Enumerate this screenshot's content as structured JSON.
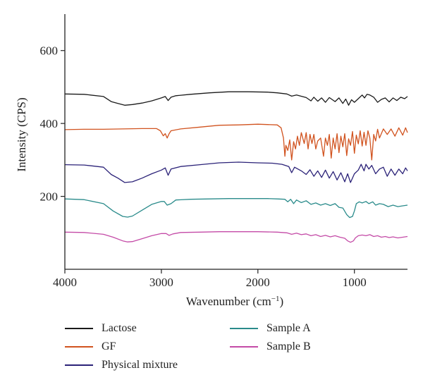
{
  "chart_data": {
    "type": "line",
    "xlabel": "Wavenumber (cm",
    "xlabel_sup": "−1",
    "xlabel_end": ")",
    "ylabel": "Intensity (CPS)",
    "xlim": [
      4000,
      450
    ],
    "ylim": [
      0,
      700
    ],
    "x_reversed": true,
    "xticks": [
      4000,
      3000,
      2000,
      1000
    ],
    "yticks": [
      200,
      400,
      600
    ],
    "grid": false,
    "legend_position": "bottom",
    "series": [
      {
        "name": "Lactose",
        "color": "#1a1a1a",
        "points": [
          [
            4000,
            481
          ],
          [
            3800,
            480
          ],
          [
            3600,
            474
          ],
          [
            3520,
            460
          ],
          [
            3450,
            455
          ],
          [
            3380,
            450
          ],
          [
            3300,
            452
          ],
          [
            3200,
            456
          ],
          [
            3100,
            462
          ],
          [
            3000,
            470
          ],
          [
            2960,
            474
          ],
          [
            2930,
            463
          ],
          [
            2900,
            472
          ],
          [
            2850,
            476
          ],
          [
            2700,
            480
          ],
          [
            2500,
            484
          ],
          [
            2300,
            487
          ],
          [
            2100,
            487
          ],
          [
            1900,
            486
          ],
          [
            1800,
            484
          ],
          [
            1700,
            481
          ],
          [
            1650,
            475
          ],
          [
            1600,
            478
          ],
          [
            1500,
            471
          ],
          [
            1450,
            462
          ],
          [
            1420,
            472
          ],
          [
            1380,
            461
          ],
          [
            1340,
            470
          ],
          [
            1300,
            458
          ],
          [
            1260,
            471
          ],
          [
            1200,
            460
          ],
          [
            1160,
            470
          ],
          [
            1120,
            455
          ],
          [
            1090,
            467
          ],
          [
            1060,
            450
          ],
          [
            1030,
            465
          ],
          [
            1000,
            458
          ],
          [
            960,
            468
          ],
          [
            920,
            478
          ],
          [
            895,
            470
          ],
          [
            870,
            480
          ],
          [
            840,
            478
          ],
          [
            800,
            472
          ],
          [
            760,
            458
          ],
          [
            720,
            466
          ],
          [
            680,
            470
          ],
          [
            640,
            459
          ],
          [
            600,
            470
          ],
          [
            560,
            463
          ],
          [
            520,
            472
          ],
          [
            480,
            468
          ],
          [
            450,
            474
          ]
        ]
      },
      {
        "name": "GF",
        "color": "#d1531f",
        "points": [
          [
            4000,
            383
          ],
          [
            3800,
            384
          ],
          [
            3600,
            384
          ],
          [
            3400,
            385
          ],
          [
            3200,
            386
          ],
          [
            3050,
            386
          ],
          [
            3010,
            380
          ],
          [
            2980,
            366
          ],
          [
            2960,
            372
          ],
          [
            2940,
            360
          ],
          [
            2920,
            372
          ],
          [
            2900,
            380
          ],
          [
            2800,
            385
          ],
          [
            2600,
            390
          ],
          [
            2400,
            395
          ],
          [
            2200,
            396
          ],
          [
            2000,
            398
          ],
          [
            1900,
            397
          ],
          [
            1800,
            396
          ],
          [
            1760,
            388
          ],
          [
            1735,
            360
          ],
          [
            1720,
            310
          ],
          [
            1710,
            340
          ],
          [
            1690,
            326
          ],
          [
            1670,
            355
          ],
          [
            1650,
            300
          ],
          [
            1630,
            350
          ],
          [
            1610,
            330
          ],
          [
            1590,
            365
          ],
          [
            1570,
            340
          ],
          [
            1550,
            375
          ],
          [
            1520,
            345
          ],
          [
            1500,
            375
          ],
          [
            1480,
            330
          ],
          [
            1460,
            370
          ],
          [
            1440,
            345
          ],
          [
            1420,
            370
          ],
          [
            1400,
            330
          ],
          [
            1380,
            352
          ],
          [
            1350,
            360
          ],
          [
            1320,
            310
          ],
          [
            1300,
            360
          ],
          [
            1280,
            340
          ],
          [
            1260,
            370
          ],
          [
            1240,
            305
          ],
          [
            1220,
            360
          ],
          [
            1200,
            330
          ],
          [
            1180,
            372
          ],
          [
            1160,
            320
          ],
          [
            1140,
            365
          ],
          [
            1120,
            336
          ],
          [
            1100,
            372
          ],
          [
            1080,
            312
          ],
          [
            1060,
            358
          ],
          [
            1040,
            340
          ],
          [
            1020,
            378
          ],
          [
            1000,
            318
          ],
          [
            980,
            368
          ],
          [
            960,
            344
          ],
          [
            940,
            380
          ],
          [
            920,
            338
          ],
          [
            900,
            376
          ],
          [
            880,
            340
          ],
          [
            860,
            380
          ],
          [
            840,
            360
          ],
          [
            820,
            300
          ],
          [
            800,
            370
          ],
          [
            780,
            352
          ],
          [
            760,
            384
          ],
          [
            740,
            360
          ],
          [
            700,
            385
          ],
          [
            660,
            370
          ],
          [
            620,
            385
          ],
          [
            580,
            365
          ],
          [
            540,
            388
          ],
          [
            500,
            368
          ],
          [
            470,
            388
          ],
          [
            450,
            375
          ]
        ]
      },
      {
        "name": "Physical mixture",
        "color": "#2b2278",
        "points": [
          [
            4000,
            287
          ],
          [
            3800,
            286
          ],
          [
            3600,
            280
          ],
          [
            3520,
            260
          ],
          [
            3450,
            250
          ],
          [
            3380,
            238
          ],
          [
            3300,
            240
          ],
          [
            3200,
            250
          ],
          [
            3100,
            262
          ],
          [
            3000,
            272
          ],
          [
            2960,
            278
          ],
          [
            2930,
            258
          ],
          [
            2900,
            275
          ],
          [
            2800,
            282
          ],
          [
            2600,
            287
          ],
          [
            2400,
            292
          ],
          [
            2200,
            294
          ],
          [
            2000,
            292
          ],
          [
            1850,
            291
          ],
          [
            1750,
            288
          ],
          [
            1680,
            282
          ],
          [
            1650,
            265
          ],
          [
            1620,
            280
          ],
          [
            1550,
            270
          ],
          [
            1500,
            260
          ],
          [
            1460,
            273
          ],
          [
            1420,
            255
          ],
          [
            1380,
            270
          ],
          [
            1340,
            252
          ],
          [
            1300,
            272
          ],
          [
            1260,
            250
          ],
          [
            1220,
            268
          ],
          [
            1180,
            245
          ],
          [
            1140,
            265
          ],
          [
            1100,
            240
          ],
          [
            1070,
            262
          ],
          [
            1040,
            238
          ],
          [
            1000,
            262
          ],
          [
            960,
            272
          ],
          [
            930,
            288
          ],
          [
            900,
            270
          ],
          [
            880,
            288
          ],
          [
            850,
            275
          ],
          [
            820,
            285
          ],
          [
            780,
            262
          ],
          [
            740,
            275
          ],
          [
            700,
            280
          ],
          [
            660,
            255
          ],
          [
            620,
            275
          ],
          [
            580,
            258
          ],
          [
            540,
            275
          ],
          [
            500,
            262
          ],
          [
            470,
            278
          ],
          [
            450,
            270
          ]
        ]
      },
      {
        "name": "Sample A",
        "color": "#2a8b8b",
        "points": [
          [
            4000,
            193
          ],
          [
            3800,
            191
          ],
          [
            3600,
            180
          ],
          [
            3500,
            160
          ],
          [
            3400,
            145
          ],
          [
            3350,
            143
          ],
          [
            3300,
            146
          ],
          [
            3200,
            162
          ],
          [
            3100,
            178
          ],
          [
            3000,
            186
          ],
          [
            2970,
            186
          ],
          [
            2940,
            176
          ],
          [
            2900,
            180
          ],
          [
            2850,
            190
          ],
          [
            2700,
            192
          ],
          [
            2500,
            193
          ],
          [
            2300,
            194
          ],
          [
            2100,
            194
          ],
          [
            1900,
            194
          ],
          [
            1800,
            193
          ],
          [
            1720,
            192
          ],
          [
            1690,
            185
          ],
          [
            1660,
            192
          ],
          [
            1630,
            180
          ],
          [
            1600,
            190
          ],
          [
            1550,
            183
          ],
          [
            1500,
            188
          ],
          [
            1450,
            178
          ],
          [
            1400,
            182
          ],
          [
            1350,
            176
          ],
          [
            1300,
            180
          ],
          [
            1250,
            175
          ],
          [
            1200,
            180
          ],
          [
            1160,
            170
          ],
          [
            1120,
            168
          ],
          [
            1080,
            150
          ],
          [
            1050,
            142
          ],
          [
            1020,
            145
          ],
          [
            1000,
            160
          ],
          [
            980,
            180
          ],
          [
            950,
            185
          ],
          [
            920,
            182
          ],
          [
            880,
            186
          ],
          [
            850,
            180
          ],
          [
            810,
            185
          ],
          [
            780,
            176
          ],
          [
            740,
            180
          ],
          [
            700,
            178
          ],
          [
            650,
            172
          ],
          [
            600,
            176
          ],
          [
            550,
            172
          ],
          [
            500,
            174
          ],
          [
            450,
            176
          ]
        ]
      },
      {
        "name": "Sample B",
        "color": "#c44ba7",
        "points": [
          [
            4000,
            102
          ],
          [
            3800,
            101
          ],
          [
            3600,
            96
          ],
          [
            3500,
            88
          ],
          [
            3400,
            78
          ],
          [
            3350,
            75
          ],
          [
            3300,
            76
          ],
          [
            3200,
            84
          ],
          [
            3100,
            92
          ],
          [
            3000,
            98
          ],
          [
            2950,
            98
          ],
          [
            2920,
            93
          ],
          [
            2880,
            97
          ],
          [
            2800,
            101
          ],
          [
            2600,
            102
          ],
          [
            2400,
            103
          ],
          [
            2200,
            103
          ],
          [
            2000,
            103
          ],
          [
            1800,
            102
          ],
          [
            1700,
            100
          ],
          [
            1650,
            96
          ],
          [
            1600,
            99
          ],
          [
            1550,
            95
          ],
          [
            1500,
            97
          ],
          [
            1450,
            92
          ],
          [
            1400,
            95
          ],
          [
            1350,
            90
          ],
          [
            1300,
            93
          ],
          [
            1250,
            89
          ],
          [
            1200,
            92
          ],
          [
            1150,
            88
          ],
          [
            1100,
            85
          ],
          [
            1070,
            78
          ],
          [
            1040,
            74
          ],
          [
            1010,
            78
          ],
          [
            990,
            86
          ],
          [
            960,
            92
          ],
          [
            920,
            94
          ],
          [
            880,
            92
          ],
          [
            840,
            95
          ],
          [
            800,
            90
          ],
          [
            760,
            92
          ],
          [
            720,
            88
          ],
          [
            680,
            90
          ],
          [
            640,
            87
          ],
          [
            600,
            89
          ],
          [
            550,
            86
          ],
          [
            500,
            88
          ],
          [
            450,
            90
          ]
        ]
      }
    ]
  }
}
